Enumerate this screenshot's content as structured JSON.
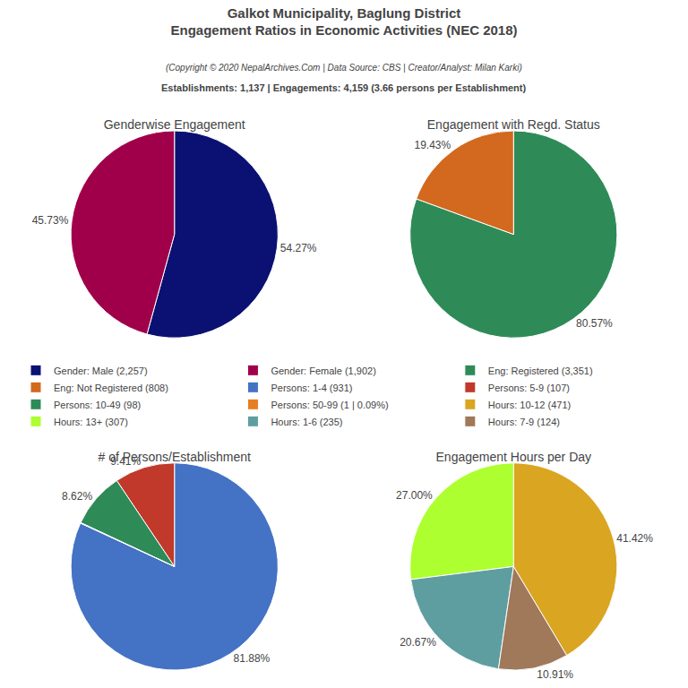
{
  "title": [
    "Galkot Municipality, Baglung District",
    "Engagement Ratios in Economic Activities (NEC 2018)"
  ],
  "subtitle": "(Copyright © 2020 NepalArchives.Com | Data Source: CBS | Creator/Analyst: Milan Karki)",
  "annotations": [
    "Establishments: 1,137 | Engagements: 4,159 (3.66 persons per Establishment)"
  ],
  "legend": "center",
  "chart_data": [
    {
      "type": "pie",
      "title": "Genderwise Engagement",
      "categories": [
        "Gender: Male (2,257)",
        "Gender: Female (1,902)"
      ],
      "values": [
        54.27,
        45.73
      ],
      "colors": [
        "#0A1172",
        "#A0004A"
      ],
      "value_labels": [
        "54.27%",
        "45.73%"
      ],
      "data_labels": true
    },
    {
      "type": "pie",
      "title": "Engagement with Regd. Status",
      "categories": [
        "Eng: Registered (3,351)",
        "Eng: Not Registered (808)"
      ],
      "values": [
        80.57,
        19.43
      ],
      "colors": [
        "#2E8B57",
        "#D2691E"
      ],
      "value_labels": [
        "80.57%",
        "19.43%"
      ],
      "data_labels": true
    },
    {
      "type": "pie",
      "title": "# of Persons/Establishment",
      "categories": [
        "Persons: 1-4 (931)",
        "Persons: 5-9 (107)",
        "Persons: 10-49 (98)",
        "Persons: 50-99 (1 | 0.09%)"
      ],
      "values": [
        81.88,
        9.41,
        8.62,
        0.09
      ],
      "colors": [
        "#4472C4",
        "#C0392B",
        "#2E8B57",
        "#E67E22"
      ],
      "value_labels": [
        "81.88%",
        "9.41%",
        "8.62%",
        null
      ],
      "data_labels": true
    },
    {
      "type": "pie",
      "title": "Engagement Hours per Day",
      "categories": [
        "Hours: 10-12 (471)",
        "Hours: 13+ (307)",
        "Hours: 1-6 (235)",
        "Hours: 7-9 (124)"
      ],
      "values": [
        41.42,
        27.0,
        20.67,
        10.91
      ],
      "colors": [
        "#DAA520",
        "#ADFF2F",
        "#5F9EA0",
        "#A0785A"
      ],
      "value_labels": [
        "41.42%",
        "27.00%",
        "20.67%",
        "10.91%"
      ],
      "data_labels": true
    }
  ]
}
